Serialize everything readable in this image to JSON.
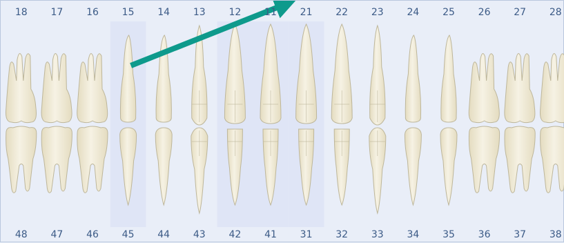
{
  "colors": {
    "background": "#e9eef8",
    "highlight_column": "#dfe5f6",
    "tooth_fill": "#f6f2e4",
    "tooth_outline": "#bdb69a",
    "tooth_shade": "#e4dcc0",
    "number_text": "#3b5a86",
    "arrow": "#0e9a8c"
  },
  "upper_teeth": [
    "18",
    "17",
    "16",
    "15",
    "14",
    "13",
    "12",
    "11",
    "21",
    "22",
    "23",
    "24",
    "25",
    "26",
    "27",
    "28"
  ],
  "lower_teeth": [
    "48",
    "47",
    "46",
    "45",
    "44",
    "43",
    "42",
    "41",
    "31",
    "32",
    "33",
    "34",
    "35",
    "36",
    "37",
    "38"
  ],
  "tooth_types_upper": [
    "molar",
    "molar",
    "molar",
    "premolar",
    "premolar",
    "canine",
    "incisor",
    "incisor",
    "incisor",
    "incisor",
    "canine",
    "premolar",
    "premolar",
    "molar",
    "molar",
    "molar"
  ],
  "tooth_types_lower": [
    "molar",
    "molar",
    "molar",
    "premolar",
    "premolar",
    "canine",
    "incisor",
    "incisor",
    "incisor",
    "incisor",
    "canine",
    "premolar",
    "premolar",
    "molar",
    "molar",
    "molar"
  ],
  "highlighted_columns": [
    "15",
    "12",
    "11",
    "21"
  ],
  "annotation": {
    "type": "arrow",
    "icon": "teal-arrow-icon",
    "from_tooth": "15",
    "to_tooth": "11"
  }
}
